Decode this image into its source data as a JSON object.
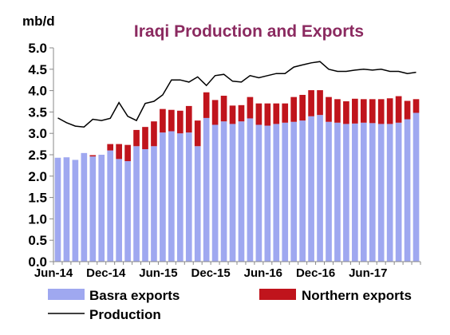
{
  "chart_data": {
    "type": "bar",
    "stacked": true,
    "title": "Iraqi Production and Exports",
    "ylabel": "mb/d",
    "ylim": [
      0,
      5.0
    ],
    "yticks": [
      "0.0",
      "0.5",
      "1.0",
      "1.5",
      "2.0",
      "2.5",
      "3.0",
      "3.5",
      "4.0",
      "4.5",
      "5.0"
    ],
    "xtick_labels": [
      "Jun-14",
      "Dec-14",
      "Jun-15",
      "Dec-15",
      "Jun-16",
      "Dec-16",
      "Jun-17"
    ],
    "xtick_every": 6,
    "grid": false,
    "legend_position": "bottom",
    "colors": {
      "basra": "#9fa8f0",
      "northern": "#c0141c",
      "production": "#000000"
    },
    "series": [
      {
        "name": "Basra exports",
        "kind": "bar",
        "values": [
          2.43,
          2.44,
          2.38,
          2.54,
          2.46,
          2.5,
          2.6,
          2.4,
          2.35,
          2.7,
          2.63,
          2.7,
          3.02,
          3.05,
          3.0,
          3.02,
          2.7,
          3.36,
          3.2,
          3.28,
          3.22,
          3.28,
          3.35,
          3.2,
          3.18,
          3.22,
          3.25,
          3.27,
          3.3,
          3.4,
          3.43,
          3.27,
          3.25,
          3.22,
          3.23,
          3.25,
          3.24,
          3.22,
          3.22,
          3.25,
          3.33,
          3.48
        ]
      },
      {
        "name": "Northern exports",
        "kind": "bar",
        "values": [
          0,
          0,
          0,
          0,
          0.03,
          0,
          0.15,
          0.35,
          0.38,
          0.38,
          0.52,
          0.58,
          0.55,
          0.5,
          0.53,
          0.62,
          0.6,
          0.6,
          0.58,
          0.6,
          0.43,
          0.38,
          0.5,
          0.5,
          0.52,
          0.48,
          0.45,
          0.58,
          0.6,
          0.61,
          0.58,
          0.58,
          0.55,
          0.53,
          0.58,
          0.55,
          0.56,
          0.58,
          0.6,
          0.62,
          0.43,
          0.32
        ]
      },
      {
        "name": "Production",
        "kind": "line",
        "values": [
          3.36,
          3.25,
          3.17,
          3.15,
          3.33,
          3.3,
          3.35,
          3.72,
          3.4,
          3.3,
          3.7,
          3.75,
          3.9,
          4.25,
          4.25,
          4.2,
          4.32,
          4.12,
          4.35,
          4.38,
          4.22,
          4.2,
          4.35,
          4.3,
          4.35,
          4.4,
          4.4,
          4.55,
          4.6,
          4.65,
          4.68,
          4.5,
          4.45,
          4.45,
          4.48,
          4.5,
          4.48,
          4.5,
          4.45,
          4.45,
          4.4,
          4.43
        ]
      }
    ]
  }
}
